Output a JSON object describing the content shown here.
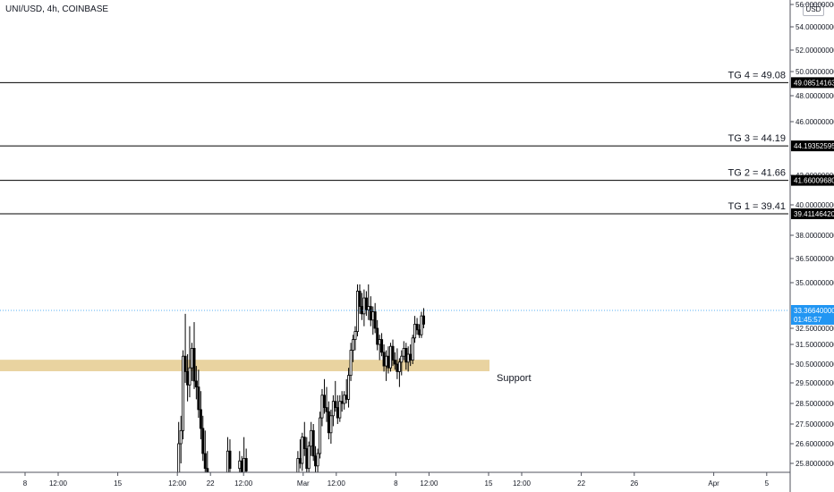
{
  "header": {
    "symbol": "UNI/USD, 4h, COINBASE",
    "currency": "USD"
  },
  "colors": {
    "up": "#ffffff",
    "down": "#000000",
    "zone": "#e9d3a0",
    "price_line": "#2196f3",
    "price_label": "#2196f3"
  },
  "chart_data": {
    "type": "candlestick",
    "title": "UNI/USD, 4h, COINBASE",
    "xlabel": "",
    "ylabel": "",
    "ylim": [
      25.2,
      56.3
    ],
    "y_tick_labels": [
      {
        "value": 56.0,
        "label": "56.00000000"
      },
      {
        "value": 54.0,
        "label": "54.00000000"
      },
      {
        "value": 52.0,
        "label": "52.00000000"
      },
      {
        "value": 50.0,
        "label": "50.00000000"
      },
      {
        "value": 48.0,
        "label": "48.00000000"
      },
      {
        "value": 46.0,
        "label": "46.00000000"
      },
      {
        "value": 42.0,
        "label": "42.00000000"
      },
      {
        "value": 40.0,
        "label": "40.00000000"
      },
      {
        "value": 38.0,
        "label": "38.00000000"
      },
      {
        "value": 36.5,
        "label": "36.50000000"
      },
      {
        "value": 35.0,
        "label": "35.00000000"
      },
      {
        "value": 32.5,
        "label": "32.50000000"
      },
      {
        "value": 31.5,
        "label": "31.50000000"
      },
      {
        "value": 30.5,
        "label": "30.50000000"
      },
      {
        "value": 29.5,
        "label": "29.50000000"
      },
      {
        "value": 28.5,
        "label": "28.50000000"
      },
      {
        "value": 27.5,
        "label": "27.50000000"
      },
      {
        "value": 26.6,
        "label": "26.60000000"
      },
      {
        "value": 25.8,
        "label": "25.80000000"
      }
    ],
    "x_ticks": [
      {
        "label": "8",
        "day": 8
      },
      {
        "label": "12:00",
        "day": 10.5
      },
      {
        "label": "15",
        "day": 15
      },
      {
        "label": "12:00",
        "day": 19.5
      },
      {
        "label": "22",
        "day": 22
      },
      {
        "label": "12:00",
        "day": 24.5
      },
      {
        "label": "Mar",
        "day": 29
      },
      {
        "label": "12:00",
        "day": 31.5
      },
      {
        "label": "8",
        "day": 36
      },
      {
        "label": "12:00",
        "day": 38.5
      },
      {
        "label": "15",
        "day": 43
      },
      {
        "label": "12:00",
        "day": 45.5
      },
      {
        "label": "22",
        "day": 50
      },
      {
        "label": "26",
        "day": 54
      },
      {
        "label": "Apr",
        "day": 60
      },
      {
        "label": "5",
        "day": 64
      }
    ],
    "targets": [
      {
        "label": "TG 4 = 49.08",
        "value": 49.08514163,
        "price_label": "49.08514163"
      },
      {
        "label": "TG 3 = 44.19",
        "value": 44.19352595,
        "price_label": "44.19352595"
      },
      {
        "label": "TG 2 = 41.66",
        "value": 41.6600968,
        "price_label": "41.66009680"
      },
      {
        "label": "TG 1 = 39.41",
        "value": 39.4114642,
        "price_label": "39.41146420"
      }
    ],
    "support_zone": {
      "label": "Support",
      "low": 30.12,
      "high": 30.72
    },
    "last_price": {
      "value": 33.3664,
      "label": "33.36640000",
      "countdown": "01:45:57"
    },
    "candles": [
      {
        "day": 19.6,
        "o": 25.2,
        "h": 27.6,
        "l": 25.2,
        "c": 26.6
      },
      {
        "day": 19.77,
        "o": 26.6,
        "h": 27.9,
        "l": 25.8,
        "c": 27.2
      },
      {
        "day": 19.93,
        "o": 27.2,
        "h": 31.2,
        "l": 26.8,
        "c": 30.9
      },
      {
        "day": 20.1,
        "o": 30.9,
        "h": 33.2,
        "l": 29.5,
        "c": 30.1
      },
      {
        "day": 20.27,
        "o": 30.1,
        "h": 31.0,
        "l": 28.6,
        "c": 29.4
      },
      {
        "day": 20.43,
        "o": 29.4,
        "h": 32.6,
        "l": 28.8,
        "c": 30.3
      },
      {
        "day": 20.6,
        "o": 30.3,
        "h": 31.6,
        "l": 29.6,
        "c": 31.3
      },
      {
        "day": 20.77,
        "o": 31.3,
        "h": 32.8,
        "l": 29.2,
        "c": 29.6
      },
      {
        "day": 20.93,
        "o": 29.6,
        "h": 30.4,
        "l": 28.7,
        "c": 29.3
      },
      {
        "day": 21.1,
        "o": 29.3,
        "h": 30.2,
        "l": 27.8,
        "c": 28.2
      },
      {
        "day": 21.27,
        "o": 28.2,
        "h": 29.1,
        "l": 26.8,
        "c": 27.3
      },
      {
        "day": 21.43,
        "o": 27.3,
        "h": 27.9,
        "l": 25.9,
        "c": 26.2
      },
      {
        "day": 21.6,
        "o": 26.2,
        "h": 27.2,
        "l": 25.2,
        "c": 25.6
      },
      {
        "day": 21.77,
        "o": 25.6,
        "h": 26.3,
        "l": 25.2,
        "c": 25.4
      },
      {
        "day": 23.3,
        "o": 25.4,
        "h": 26.9,
        "l": 25.2,
        "c": 26.3
      },
      {
        "day": 23.47,
        "o": 26.3,
        "h": 26.8,
        "l": 25.4,
        "c": 25.6
      },
      {
        "day": 24.2,
        "o": 25.6,
        "h": 26.3,
        "l": 25.2,
        "c": 25.9
      },
      {
        "day": 24.37,
        "o": 25.9,
        "h": 26.1,
        "l": 25.2,
        "c": 25.4
      },
      {
        "day": 24.53,
        "o": 25.4,
        "h": 26.9,
        "l": 25.2,
        "c": 26.0
      },
      {
        "day": 24.7,
        "o": 26.0,
        "h": 26.4,
        "l": 25.2,
        "c": 25.5
      },
      {
        "day": 28.6,
        "o": 25.3,
        "h": 26.3,
        "l": 25.2,
        "c": 26.0
      },
      {
        "day": 28.77,
        "o": 26.0,
        "h": 26.8,
        "l": 25.6,
        "c": 25.8
      },
      {
        "day": 28.93,
        "o": 25.8,
        "h": 27.1,
        "l": 25.5,
        "c": 26.9
      },
      {
        "day": 29.1,
        "o": 26.9,
        "h": 27.6,
        "l": 26.1,
        "c": 26.4
      },
      {
        "day": 29.27,
        "o": 26.4,
        "h": 26.9,
        "l": 25.4,
        "c": 25.6
      },
      {
        "day": 29.43,
        "o": 25.6,
        "h": 26.7,
        "l": 25.2,
        "c": 26.5
      },
      {
        "day": 29.6,
        "o": 26.5,
        "h": 27.6,
        "l": 26.1,
        "c": 27.2
      },
      {
        "day": 29.77,
        "o": 27.2,
        "h": 27.5,
        "l": 25.9,
        "c": 26.1
      },
      {
        "day": 29.93,
        "o": 26.1,
        "h": 26.5,
        "l": 25.4,
        "c": 25.7
      },
      {
        "day": 30.1,
        "o": 25.7,
        "h": 26.4,
        "l": 25.2,
        "c": 26.2
      },
      {
        "day": 30.27,
        "o": 26.2,
        "h": 28.1,
        "l": 26.0,
        "c": 27.8
      },
      {
        "day": 30.43,
        "o": 27.8,
        "h": 29.2,
        "l": 27.4,
        "c": 28.9
      },
      {
        "day": 30.6,
        "o": 28.9,
        "h": 29.7,
        "l": 28.0,
        "c": 28.3
      },
      {
        "day": 30.77,
        "o": 28.3,
        "h": 29.3,
        "l": 27.6,
        "c": 28.1
      },
      {
        "day": 30.93,
        "o": 28.1,
        "h": 28.6,
        "l": 26.8,
        "c": 27.1
      },
      {
        "day": 31.1,
        "o": 27.1,
        "h": 28.2,
        "l": 26.6,
        "c": 27.9
      },
      {
        "day": 31.27,
        "o": 27.9,
        "h": 28.9,
        "l": 27.4,
        "c": 28.6
      },
      {
        "day": 31.43,
        "o": 28.6,
        "h": 29.6,
        "l": 28.1,
        "c": 28.3
      },
      {
        "day": 31.6,
        "o": 28.3,
        "h": 28.9,
        "l": 27.5,
        "c": 27.8
      },
      {
        "day": 31.77,
        "o": 27.8,
        "h": 28.9,
        "l": 27.6,
        "c": 28.6
      },
      {
        "day": 31.93,
        "o": 28.6,
        "h": 29.1,
        "l": 28.1,
        "c": 28.5
      },
      {
        "day": 32.1,
        "o": 28.5,
        "h": 29.1,
        "l": 28.2,
        "c": 28.9
      },
      {
        "day": 32.27,
        "o": 28.9,
        "h": 29.7,
        "l": 28.5,
        "c": 28.7
      },
      {
        "day": 32.43,
        "o": 28.7,
        "h": 30.3,
        "l": 28.3,
        "c": 29.9
      },
      {
        "day": 32.6,
        "o": 29.9,
        "h": 31.6,
        "l": 29.6,
        "c": 31.2
      },
      {
        "day": 32.77,
        "o": 31.2,
        "h": 32.1,
        "l": 30.6,
        "c": 31.8
      },
      {
        "day": 32.93,
        "o": 31.8,
        "h": 32.6,
        "l": 31.2,
        "c": 32.3
      },
      {
        "day": 33.1,
        "o": 32.3,
        "h": 34.9,
        "l": 32.0,
        "c": 34.5
      },
      {
        "day": 33.27,
        "o": 34.5,
        "h": 34.9,
        "l": 33.2,
        "c": 33.6
      },
      {
        "day": 33.43,
        "o": 33.6,
        "h": 34.4,
        "l": 32.9,
        "c": 33.2
      },
      {
        "day": 33.6,
        "o": 33.2,
        "h": 34.6,
        "l": 32.6,
        "c": 34.1
      },
      {
        "day": 33.77,
        "o": 34.1,
        "h": 34.5,
        "l": 33.1,
        "c": 33.4
      },
      {
        "day": 33.93,
        "o": 33.4,
        "h": 34.9,
        "l": 32.9,
        "c": 33.6
      },
      {
        "day": 34.1,
        "o": 33.6,
        "h": 34.2,
        "l": 32.6,
        "c": 32.9
      },
      {
        "day": 34.27,
        "o": 32.9,
        "h": 33.6,
        "l": 32.1,
        "c": 33.3
      },
      {
        "day": 34.43,
        "o": 33.3,
        "h": 33.8,
        "l": 32.2,
        "c": 32.5
      },
      {
        "day": 34.6,
        "o": 32.5,
        "h": 32.9,
        "l": 31.2,
        "c": 31.5
      },
      {
        "day": 34.77,
        "o": 31.5,
        "h": 32.1,
        "l": 30.7,
        "c": 31.8
      },
      {
        "day": 34.93,
        "o": 31.8,
        "h": 32.2,
        "l": 30.9,
        "c": 31.1
      },
      {
        "day": 35.1,
        "o": 31.1,
        "h": 31.5,
        "l": 30.1,
        "c": 30.4
      },
      {
        "day": 35.27,
        "o": 30.4,
        "h": 31.2,
        "l": 29.6,
        "c": 30.9
      },
      {
        "day": 35.43,
        "o": 30.9,
        "h": 31.4,
        "l": 30.0,
        "c": 30.3
      },
      {
        "day": 35.6,
        "o": 30.3,
        "h": 31.6,
        "l": 30.1,
        "c": 31.4
      },
      {
        "day": 35.77,
        "o": 31.4,
        "h": 31.8,
        "l": 30.4,
        "c": 30.7
      },
      {
        "day": 35.93,
        "o": 30.7,
        "h": 31.1,
        "l": 30.2,
        "c": 30.5
      },
      {
        "day": 36.1,
        "o": 30.5,
        "h": 31.3,
        "l": 29.7,
        "c": 30.1
      },
      {
        "day": 36.27,
        "o": 30.1,
        "h": 30.8,
        "l": 29.3,
        "c": 30.6
      },
      {
        "day": 36.43,
        "o": 30.6,
        "h": 31.2,
        "l": 29.9,
        "c": 30.9
      },
      {
        "day": 36.6,
        "o": 30.9,
        "h": 31.7,
        "l": 30.7,
        "c": 31.3
      },
      {
        "day": 36.77,
        "o": 31.3,
        "h": 31.6,
        "l": 30.2,
        "c": 30.6
      },
      {
        "day": 36.93,
        "o": 30.6,
        "h": 31.4,
        "l": 30.1,
        "c": 31.0
      },
      {
        "day": 37.1,
        "o": 31.0,
        "h": 31.5,
        "l": 30.4,
        "c": 30.7
      },
      {
        "day": 37.27,
        "o": 30.7,
        "h": 32.1,
        "l": 30.5,
        "c": 31.9
      },
      {
        "day": 37.43,
        "o": 31.9,
        "h": 33.1,
        "l": 31.6,
        "c": 32.7
      },
      {
        "day": 37.6,
        "o": 32.7,
        "h": 33.0,
        "l": 32.1,
        "c": 32.4
      },
      {
        "day": 37.77,
        "o": 32.4,
        "h": 32.7,
        "l": 31.9,
        "c": 32.1
      },
      {
        "day": 37.93,
        "o": 32.1,
        "h": 33.3,
        "l": 31.9,
        "c": 33.1
      },
      {
        "day": 38.1,
        "o": 33.1,
        "h": 33.5,
        "l": 32.5,
        "c": 32.7
      }
    ]
  }
}
